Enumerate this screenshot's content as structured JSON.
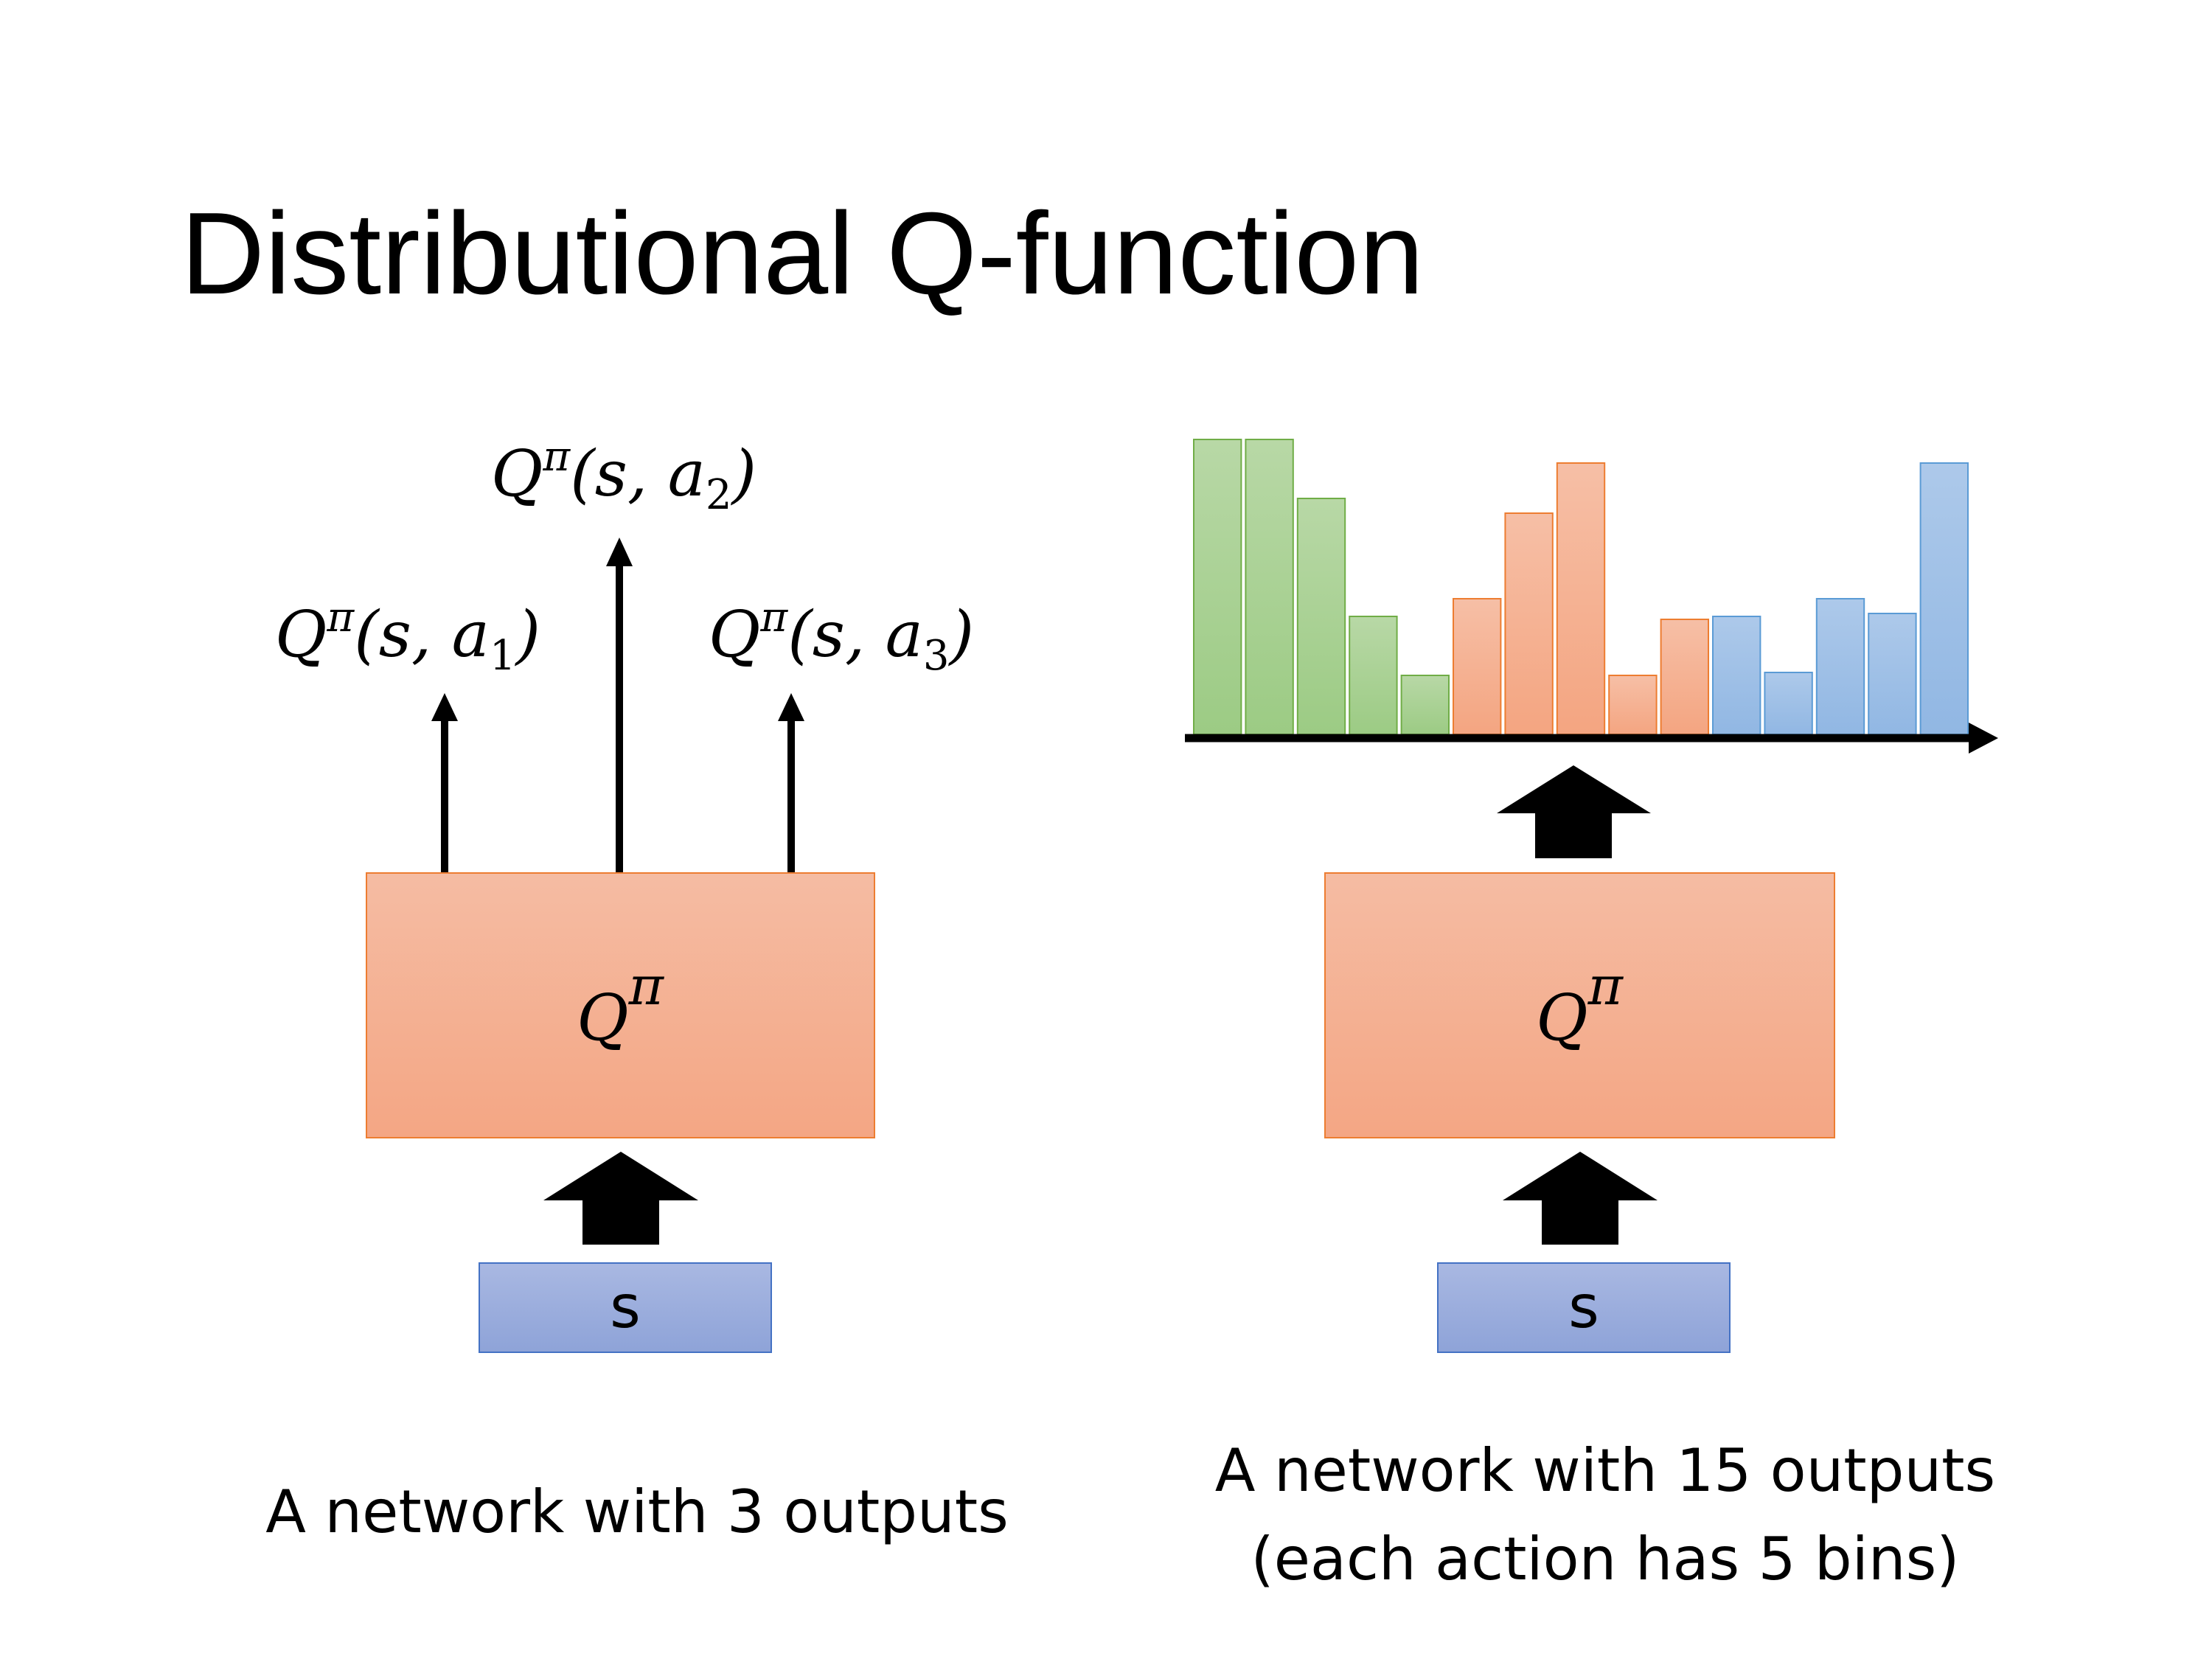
{
  "title": "Distributional Q-function",
  "left": {
    "outputs": [
      {
        "q": "Q",
        "pi": "π",
        "args_open": "(s, a",
        "sub": "1",
        "args_close": ")"
      },
      {
        "q": "Q",
        "pi": "π",
        "args_open": "(s, a",
        "sub": "2",
        "args_close": ")"
      },
      {
        "q": "Q",
        "pi": "π",
        "args_open": "(s, a",
        "sub": "3",
        "args_close": ")"
      }
    ],
    "network": {
      "q": "Q",
      "pi": "π"
    },
    "input": "s",
    "caption": "A network with 3 outputs"
  },
  "right": {
    "network": {
      "q": "Q",
      "pi": "π"
    },
    "input": "s",
    "caption_line1": "A network with 15 outputs",
    "caption_line2": "(each action has 5 bins)"
  },
  "chart_data": {
    "type": "bar",
    "values": [
      1.0,
      1.0,
      0.8,
      0.4,
      0.2,
      0.46,
      0.75,
      0.92,
      0.2,
      0.39,
      0.4,
      0.21,
      0.46,
      0.41,
      0.92
    ],
    "groups": [
      "a1",
      "a1",
      "a1",
      "a1",
      "a1",
      "a2",
      "a2",
      "a2",
      "a2",
      "a2",
      "a3",
      "a3",
      "a3",
      "a3",
      "a3"
    ],
    "group_colors": {
      "a1": "#a9d18e",
      "a2": "#f4b183",
      "a3": "#9dc3e6"
    },
    "group_borders": {
      "a1": "#70ad47",
      "a2": "#ed7d31",
      "a3": "#5b9bd5"
    },
    "ylim": [
      0,
      1
    ]
  },
  "colors": {
    "network": "#f4b096",
    "network_border": "#ed7d31",
    "input": "#9aabdc",
    "input_border": "#4472c4"
  }
}
